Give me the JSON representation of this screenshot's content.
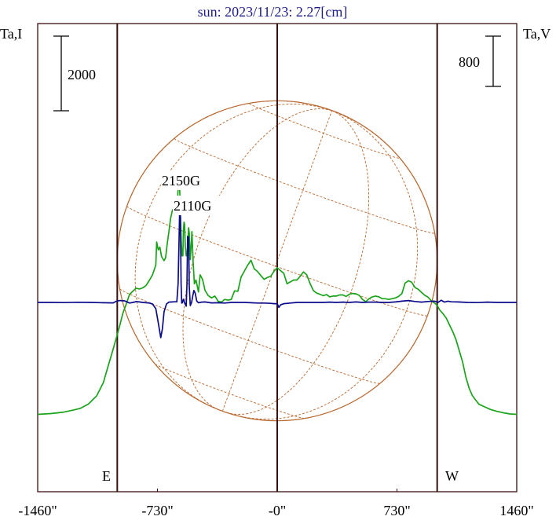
{
  "chart_data": {
    "type": "line",
    "title": "sun: 2023/11/23: 2.27[cm]",
    "left_axis_label": "Ta,I",
    "right_axis_label": "Ta,V",
    "left_scale_bar": "2000",
    "right_scale_bar": "800",
    "x_ticks": [
      "-1460\"",
      "-730\"",
      "-0\"",
      "730\"",
      "1460\""
    ],
    "x_tick_values": [
      -1460,
      -730,
      0,
      730,
      1460
    ],
    "xlim": [
      -1460,
      1460
    ],
    "limb_label_east": "E",
    "limb_label_west": "W",
    "limb_positions": [
      -975,
      975
    ],
    "annotations": [
      "2150G",
      "2110G"
    ],
    "colors": {
      "I": "#1aa31a",
      "V": "#0a0a8a",
      "grid": "#b8672e",
      "title": "#1c1c8c",
      "lines": "#3a1010"
    },
    "series": [
      {
        "key": "I",
        "x": [
          -1460,
          -1420,
          -1380,
          -1340,
          -1300,
          -1260,
          -1200,
          -1150,
          -1100,
          -1060,
          -1030,
          -1000,
          -980,
          -960,
          -940,
          -920,
          -900,
          -880,
          -860,
          -840,
          -820,
          -800,
          -780,
          -760,
          -740,
          -735,
          -725,
          -715,
          -705,
          -690,
          -680,
          -670,
          -660,
          -650,
          -645,
          -640,
          -632,
          -626,
          -620,
          -614,
          -608,
          -600,
          -595,
          -590,
          -585,
          -580,
          -575,
          -572,
          -568,
          -565,
          -560,
          -555,
          -550,
          -545,
          -540,
          -536,
          -530,
          -525,
          -520,
          -512,
          -505,
          -495,
          -480,
          -470,
          -455,
          -440,
          -420,
          -400,
          -380,
          -360,
          -340,
          -320,
          -300,
          -280,
          -260,
          -240,
          -220,
          -200,
          -180,
          -160,
          -140,
          -120,
          -100,
          -80,
          -60,
          -40,
          -20,
          0,
          20,
          40,
          60,
          80,
          100,
          120,
          140,
          160,
          180,
          200,
          220,
          240,
          260,
          280,
          300,
          320,
          340,
          360,
          380,
          400,
          420,
          440,
          460,
          480,
          500,
          520,
          540,
          560,
          580,
          600,
          620,
          640,
          660,
          680,
          700,
          720,
          740,
          760,
          780,
          800,
          820,
          840,
          860,
          880,
          900,
          920,
          940,
          960,
          975,
          990,
          1010,
          1030,
          1050,
          1070,
          1090,
          1110,
          1130,
          1150,
          1170,
          1190,
          1210,
          1230,
          1260,
          1300,
          1340,
          1380,
          1420,
          1460
        ],
        "y": [
          -3000,
          -2990,
          -2980,
          -2960,
          -2940,
          -2900,
          -2840,
          -2720,
          -2500,
          -2150,
          -1700,
          -1250,
          -940,
          -620,
          -280,
          -40,
          220,
          300,
          380,
          360,
          390,
          450,
          590,
          740,
          1000,
          1620,
          1410,
          1480,
          1230,
          1120,
          1200,
          1580,
          1900,
          2250,
          2350,
          2450,
          2520,
          2500,
          2700,
          2600,
          2700,
          3490,
          3100,
          2430,
          1640,
          1250,
          1250,
          1900,
          2150,
          2100,
          1500,
          1250,
          1250,
          1550,
          2000,
          1850,
          1150,
          1450,
          1900,
          1050,
          500,
          600,
          280,
          740,
          620,
          320,
          180,
          120,
          170,
          30,
          10,
          80,
          60,
          80,
          310,
          300,
          680,
          840,
          1000,
          1130,
          900,
          830,
          720,
          620,
          670,
          700,
          830,
          930,
          850,
          780,
          500,
          550,
          600,
          600,
          700,
          820,
          740,
          510,
          320,
          250,
          220,
          180,
          210,
          150,
          170,
          170,
          200,
          200,
          160,
          220,
          240,
          230,
          190,
          80,
          20,
          100,
          150,
          170,
          150,
          100,
          100,
          80,
          100,
          120,
          160,
          240,
          520,
          580,
          540,
          400,
          350,
          270,
          190,
          140,
          40,
          -20,
          -80,
          -200,
          -300,
          -420,
          -600,
          -780,
          -1000,
          -1300,
          -1600,
          -2000,
          -2300,
          -2500,
          -2620,
          -2730,
          -2790,
          -2870,
          -2920,
          -2960,
          -2990,
          -3000
        ]
      },
      {
        "key": "V",
        "x": [
          -1460,
          -1380,
          -1300,
          -1220,
          -1140,
          -1060,
          -1000,
          -980,
          -960,
          -930,
          -900,
          -880,
          -860,
          -840,
          -820,
          -800,
          -780,
          -760,
          -740,
          -725,
          -710,
          -700,
          -690,
          -675,
          -660,
          -640,
          -625,
          -612,
          -604,
          -598,
          -594,
          -590,
          -586,
          -582,
          -578,
          -572,
          -565,
          -560,
          -555,
          -550,
          -546,
          -540,
          -536,
          -530,
          -522,
          -515,
          -508,
          -500,
          -490,
          -480,
          -470,
          -460,
          -440,
          -420,
          -400,
          -360,
          -320,
          -280,
          -240,
          -200,
          -160,
          -120,
          -80,
          -40,
          -20,
          0,
          10,
          20,
          40,
          80,
          120,
          160,
          200,
          240,
          280,
          320,
          360,
          400,
          440,
          480,
          520,
          560,
          600,
          640,
          680,
          720,
          760,
          800,
          840,
          880,
          920,
          960,
          980,
          1000,
          1020,
          1040,
          1060,
          1100,
          1160,
          1220,
          1280,
          1340,
          1400,
          1460
        ],
        "y": [
          0,
          0,
          -3,
          3,
          0,
          -5,
          -8,
          20,
          30,
          25,
          -10,
          0,
          12,
          8,
          0,
          -5,
          -10,
          -25,
          -100,
          -320,
          -560,
          -420,
          -150,
          -25,
          5,
          8,
          10,
          10,
          300,
          1050,
          1540,
          1350,
          300,
          -10,
          -5,
          50,
          0,
          -30,
          -60,
          300,
          1050,
          1040,
          250,
          -50,
          0,
          100,
          190,
          150,
          20,
          -5,
          0,
          5,
          8,
          0,
          -8,
          -5,
          -10,
          0,
          0,
          0,
          -5,
          -10,
          -10,
          -15,
          -20,
          -20,
          -80,
          -40,
          -20,
          -10,
          0,
          0,
          0,
          0,
          0,
          5,
          0,
          5,
          0,
          8,
          0,
          5,
          5,
          0,
          0,
          8,
          20,
          30,
          15,
          5,
          15,
          20,
          0,
          35,
          5,
          20,
          10,
          8,
          0,
          -3,
          5,
          0,
          0,
          0
        ]
      }
    ]
  }
}
